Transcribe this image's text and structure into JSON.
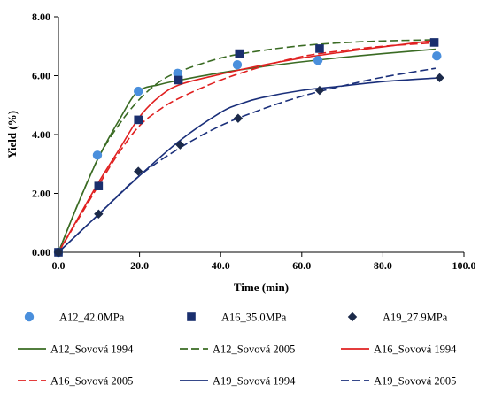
{
  "chart_data": {
    "type": "scatter",
    "xlabel": "Time (min)",
    "ylabel": "Yield (%)",
    "xlim": [
      0,
      100
    ],
    "ylim": [
      0,
      8
    ],
    "xticks": [
      0,
      20,
      40,
      60,
      80,
      100
    ],
    "yticks": [
      0,
      2,
      4,
      6,
      8
    ],
    "xtick_labels": [
      "0.0",
      "20.0",
      "40.0",
      "60.0",
      "80.0",
      "100.0"
    ],
    "ytick_labels": [
      "0.00",
      "2.00",
      "4.00",
      "6.00",
      "8.00"
    ],
    "grid": false,
    "legend_position": "bottom",
    "points": [
      {
        "name": "A12_42.0MPa",
        "marker": "circle",
        "color": "#4a8fdc",
        "x": [
          0,
          9.6,
          19.7,
          29.4,
          44.1,
          64.0,
          93.3
        ],
        "y": [
          0,
          3.3,
          5.47,
          6.08,
          6.37,
          6.52,
          6.67
        ]
      },
      {
        "name": "A16_35.0MPa",
        "marker": "square",
        "color": "#1a2f6e",
        "x": [
          0,
          9.9,
          19.7,
          29.6,
          44.6,
          64.4,
          92.7
        ],
        "y": [
          0,
          2.25,
          4.5,
          5.85,
          6.75,
          6.92,
          7.13
        ]
      },
      {
        "name": "A19_27.9MPa",
        "marker": "diamond",
        "color": "#1c2a4a",
        "x": [
          0,
          9.9,
          19.7,
          30.0,
          44.3,
          64.4,
          94.0
        ],
        "y": [
          0,
          1.3,
          2.75,
          3.65,
          4.55,
          5.5,
          5.93
        ]
      }
    ],
    "lines": [
      {
        "name": "A12_Sovová 1994",
        "color": "#3a6b23",
        "dash": "solid",
        "x": [
          0,
          5,
          10,
          15,
          19.5,
          25,
          30,
          40,
          50,
          60,
          70,
          80,
          93
        ],
        "y": [
          0,
          1.7,
          3.25,
          4.5,
          5.45,
          5.7,
          5.85,
          6.1,
          6.3,
          6.47,
          6.62,
          6.75,
          6.9
        ]
      },
      {
        "name": "A12_Sovová 2005",
        "color": "#3a6b23",
        "dash": "dashed",
        "x": [
          0,
          5,
          10,
          15,
          20,
          25,
          30,
          40,
          50,
          60,
          70,
          80,
          93
        ],
        "y": [
          0,
          1.7,
          3.25,
          4.35,
          5.2,
          5.8,
          6.15,
          6.6,
          6.85,
          7.02,
          7.12,
          7.18,
          7.22
        ]
      },
      {
        "name": "A16_Sovová 1994",
        "color": "#e02020",
        "dash": "solid",
        "x": [
          0,
          5,
          10,
          15,
          20,
          25,
          30,
          40,
          50,
          60,
          70,
          80,
          93
        ],
        "y": [
          0,
          1.2,
          2.4,
          3.5,
          4.6,
          5.3,
          5.7,
          6.05,
          6.35,
          6.6,
          6.8,
          6.98,
          7.2
        ]
      },
      {
        "name": "A16_Sovová 2005",
        "color": "#e02020",
        "dash": "dashed",
        "x": [
          0,
          5,
          10,
          15,
          20,
          25,
          30,
          40,
          50,
          60,
          70,
          80,
          93
        ],
        "y": [
          0,
          1.15,
          2.3,
          3.4,
          4.3,
          4.85,
          5.25,
          5.85,
          6.3,
          6.65,
          6.85,
          7.0,
          7.12
        ]
      },
      {
        "name": "A19_Sovová 1994",
        "color": "#1a2f7a",
        "dash": "solid",
        "x": [
          0,
          5,
          10,
          20,
          30,
          40,
          45,
          50,
          60,
          70,
          80,
          93
        ],
        "y": [
          0,
          0.65,
          1.3,
          2.6,
          3.8,
          4.75,
          5.05,
          5.25,
          5.5,
          5.65,
          5.8,
          5.92
        ]
      },
      {
        "name": "A19_Sovová 2005",
        "color": "#1a2f7a",
        "dash": "dashed",
        "x": [
          0,
          5,
          10,
          20,
          30,
          40,
          50,
          60,
          70,
          80,
          93
        ],
        "y": [
          0,
          0.65,
          1.3,
          2.6,
          3.55,
          4.3,
          4.85,
          5.3,
          5.65,
          5.95,
          6.25
        ]
      }
    ]
  }
}
